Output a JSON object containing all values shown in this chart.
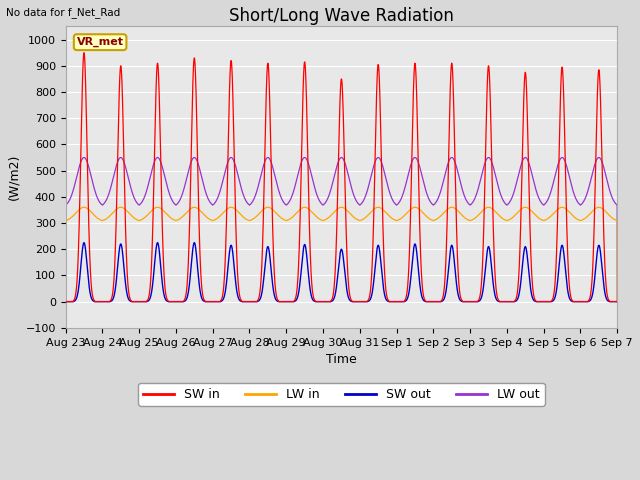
{
  "title": "Short/Long Wave Radiation",
  "xlabel": "Time",
  "ylabel": "(W/m2)",
  "top_left_text": "No data for f_Net_Rad",
  "legend_box_text": "VR_met",
  "legend_box_color": "#c8a000",
  "ylim": [
    -100,
    1050
  ],
  "yticks": [
    -100,
    0,
    100,
    200,
    300,
    400,
    500,
    600,
    700,
    800,
    900,
    1000
  ],
  "x_labels": [
    "Aug 23",
    "Aug 24",
    "Aug 25",
    "Aug 26",
    "Aug 27",
    "Aug 28",
    "Aug 29",
    "Aug 30",
    "Aug 31",
    "Sep 1",
    "Sep 2",
    "Sep 3",
    "Sep 4",
    "Sep 5",
    "Sep 6",
    "Sep 7"
  ],
  "num_days": 15,
  "sw_in_peaks": [
    950,
    900,
    910,
    930,
    920,
    910,
    915,
    850,
    905,
    910,
    910,
    900,
    875,
    895,
    885
  ],
  "sw_out_peaks": [
    225,
    220,
    225,
    225,
    215,
    210,
    218,
    200,
    215,
    220,
    215,
    210,
    210,
    215,
    215
  ],
  "lw_in_base": 305,
  "lw_in_peak_add": 55,
  "lw_out_night": 360,
  "lw_out_day_peak": 190,
  "colors": {
    "sw_in": "#ff0000",
    "lw_in": "#ffa500",
    "sw_out": "#0000cc",
    "lw_out": "#9933cc"
  },
  "background_color": "#e8e8e8",
  "grid_color": "#ffffff",
  "title_fontsize": 12,
  "label_fontsize": 9,
  "tick_fontsize": 8
}
